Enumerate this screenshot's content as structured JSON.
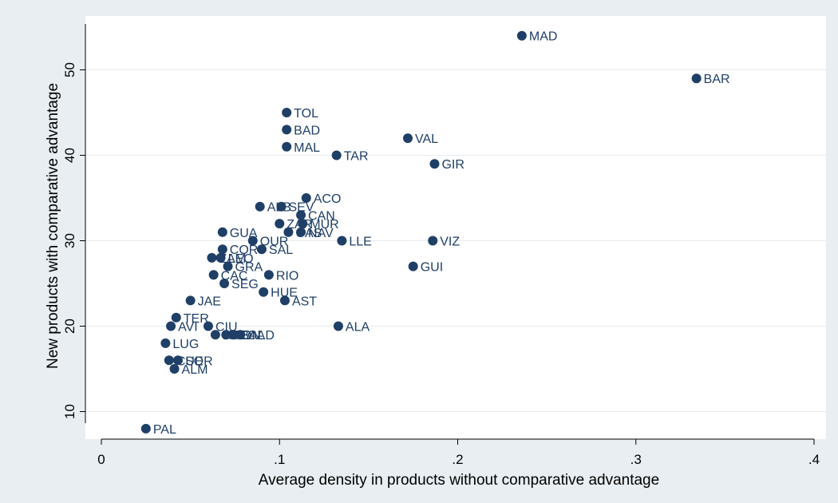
{
  "chart_data": {
    "type": "scatter",
    "xlabel": "Average density in products without comparative advantage",
    "ylabel": "New products with comparative advantage",
    "xlim": [
      0,
      0.4
    ],
    "ylim": [
      7,
      55
    ],
    "x_ticks": [
      {
        "value": 0,
        "label": "0"
      },
      {
        "value": 0.1,
        "label": ".1"
      },
      {
        "value": 0.2,
        "label": ".2"
      },
      {
        "value": 0.3,
        "label": ".3"
      },
      {
        "value": 0.4,
        "label": ".4"
      }
    ],
    "y_ticks": [
      {
        "value": 10,
        "label": "10"
      },
      {
        "value": 20,
        "label": "20"
      },
      {
        "value": 30,
        "label": "30"
      },
      {
        "value": 40,
        "label": "40"
      },
      {
        "value": 50,
        "label": "50"
      }
    ],
    "grid": "horizontal",
    "point_color": "#1f3f66",
    "background": "#e8eef2",
    "points": [
      {
        "label": "MAD",
        "x": 0.236,
        "y": 54
      },
      {
        "label": "BAR",
        "x": 0.334,
        "y": 49
      },
      {
        "label": "TOL",
        "x": 0.104,
        "y": 45
      },
      {
        "label": "BAD",
        "x": 0.104,
        "y": 43
      },
      {
        "label": "VAL",
        "x": 0.172,
        "y": 42
      },
      {
        "label": "MAL",
        "x": 0.104,
        "y": 41
      },
      {
        "label": "TAR",
        "x": 0.132,
        "y": 40
      },
      {
        "label": "GIR",
        "x": 0.187,
        "y": 39
      },
      {
        "label": "ACO",
        "x": 0.115,
        "y": 35
      },
      {
        "label": "ALB",
        "x": 0.089,
        "y": 34
      },
      {
        "label": "SEV",
        "x": 0.101,
        "y": 34
      },
      {
        "label": "CAN",
        "x": 0.112,
        "y": 33
      },
      {
        "label": "ZAR",
        "x": 0.1,
        "y": 32
      },
      {
        "label": "MUR",
        "x": 0.113,
        "y": 32
      },
      {
        "label": "GUA",
        "x": 0.068,
        "y": 31
      },
      {
        "label": "CAS",
        "x": 0.105,
        "y": 31
      },
      {
        "label": "NAV",
        "x": 0.112,
        "y": 31
      },
      {
        "label": "OUR",
        "x": 0.085,
        "y": 30
      },
      {
        "label": "LLE",
        "x": 0.135,
        "y": 30
      },
      {
        "label": "VIZ",
        "x": 0.186,
        "y": 30
      },
      {
        "label": "COR",
        "x": 0.068,
        "y": 29
      },
      {
        "label": "SAL",
        "x": 0.09,
        "y": 29
      },
      {
        "label": "ZAM",
        "x": 0.062,
        "y": 28
      },
      {
        "label": "LEO",
        "x": 0.067,
        "y": 28
      },
      {
        "label": "GRA",
        "x": 0.071,
        "y": 27
      },
      {
        "label": "GUI",
        "x": 0.175,
        "y": 27
      },
      {
        "label": "CAC",
        "x": 0.063,
        "y": 26
      },
      {
        "label": "RIO",
        "x": 0.094,
        "y": 26
      },
      {
        "label": "SEG",
        "x": 0.069,
        "y": 25
      },
      {
        "label": "HUE",
        "x": 0.091,
        "y": 24
      },
      {
        "label": "JAE",
        "x": 0.05,
        "y": 23
      },
      {
        "label": "AST",
        "x": 0.103,
        "y": 23
      },
      {
        "label": "TER",
        "x": 0.042,
        "y": 21
      },
      {
        "label": "AVI",
        "x": 0.039,
        "y": 20
      },
      {
        "label": "CIU",
        "x": 0.06,
        "y": 20
      },
      {
        "label": "ALA",
        "x": 0.133,
        "y": 20
      },
      {
        "label": "HUE",
        "x": 0.064,
        "y": 19
      },
      {
        "label": "PON",
        "x": 0.07,
        "y": 19
      },
      {
        "label": "BAL",
        "x": 0.074,
        "y": 19
      },
      {
        "label": "CAD",
        "x": 0.078,
        "y": 19
      },
      {
        "label": "LUG",
        "x": 0.036,
        "y": 18
      },
      {
        "label": "CUE",
        "x": 0.038,
        "y": 16
      },
      {
        "label": "SOR",
        "x": 0.043,
        "y": 16
      },
      {
        "label": "ALM",
        "x": 0.041,
        "y": 15
      },
      {
        "label": "PAL",
        "x": 0.025,
        "y": 8
      }
    ]
  }
}
